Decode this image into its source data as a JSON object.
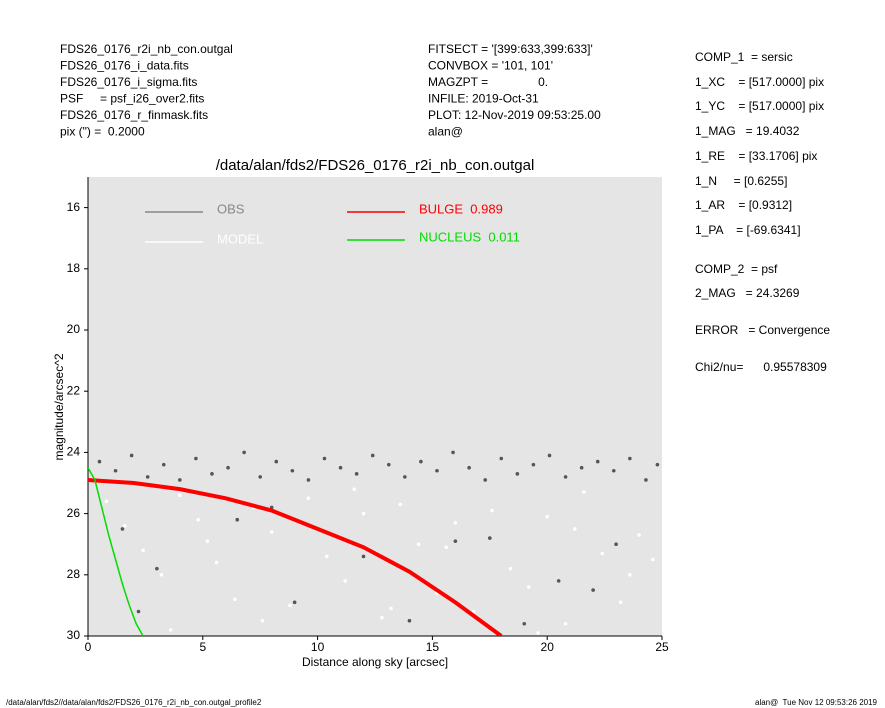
{
  "header": {
    "left": [
      "FDS26_0176_r2i_nb_con.outgal",
      "FDS26_0176_i_data.fits",
      "FDS26_0176_i_sigma.fits",
      "PSF     = psf_i26_over2.fits",
      "FDS26_0176_r_finmask.fits",
      "pix (\") =  0.2000"
    ],
    "middle": [
      "FITSECT = '[399:633,399:633]'",
      "CONVBOX = '101, 101'",
      "MAGZPT =               0.",
      "INFILE: 2019-Oct-31",
      "PLOT: 12-Nov-2019 09:53:25.00",
      "alan@"
    ]
  },
  "params": [
    "COMP_1  = sersic",
    "1_XC    = [517.0000] pix",
    "1_YC    = [517.0000] pix",
    "1_MAG   = 19.4032",
    "1_RE    = [33.1706] pix",
    "1_N     = [0.6255]",
    "1_AR    = [0.9312]",
    "1_PA    = [-69.6341]",
    "COMP_2  = psf",
    "2_MAG   = 24.3269",
    "ERROR   = Convergence",
    "Chi2/nu=      0.95578309"
  ],
  "footer": {
    "left": "/data/alan/fds2//data/alan/fds2/FDS26_0176_r2i_nb_con.outgal_profile2",
    "right": "alan@  Tue Nov 12 09:53:26 2019"
  },
  "chart_data": {
    "type": "scatter",
    "title": "/data/alan/fds2/FDS26_0176_r2i_nb_con.outgal",
    "xlabel": "Distance along sky [arcsec]",
    "ylabel": "magnitude/arcsec^2",
    "xlim": [
      0,
      25
    ],
    "xticks": [
      0,
      5,
      10,
      15,
      20,
      25
    ],
    "ylim": [
      30,
      15
    ],
    "yticks": [
      16,
      18,
      20,
      22,
      24,
      26,
      28,
      30
    ],
    "y_inverted": true,
    "background": "#e5e5e5",
    "series": [
      {
        "name": "OBS",
        "color": "#555555",
        "mode": "markers",
        "x": [
          0.5,
          1.2,
          1.9,
          2.6,
          3.3,
          4.0,
          4.7,
          5.4,
          6.1,
          6.8,
          7.5,
          8.2,
          8.9,
          9.6,
          10.3,
          11.0,
          11.7,
          12.4,
          13.1,
          13.8,
          14.5,
          15.2,
          15.9,
          16.6,
          17.3,
          18.0,
          18.7,
          19.4,
          20.1,
          20.8,
          21.5,
          22.2,
          22.9,
          23.6,
          24.3,
          24.8,
          1.5,
          3.0,
          6.5,
          9.0,
          12.0,
          14.0,
          17.5,
          20.5,
          23.0,
          2.2,
          8.0,
          16.0,
          19.0,
          22.0
        ],
        "values": [
          24.3,
          24.6,
          24.1,
          24.8,
          24.4,
          24.9,
          24.2,
          24.7,
          24.5,
          24.0,
          24.8,
          24.3,
          24.6,
          24.9,
          24.2,
          24.5,
          24.7,
          24.1,
          24.4,
          24.8,
          24.3,
          24.6,
          24.0,
          24.5,
          24.9,
          24.2,
          24.7,
          24.4,
          24.1,
          24.8,
          24.5,
          24.3,
          24.6,
          24.2,
          24.9,
          24.4,
          26.5,
          27.8,
          26.2,
          28.9,
          27.4,
          29.5,
          26.8,
          28.2,
          27.0,
          29.2,
          25.8,
          26.9,
          29.6,
          28.5
        ]
      },
      {
        "name": "MODEL",
        "color": "#ffffff",
        "mode": "markers",
        "x": [
          0.8,
          1.6,
          2.4,
          3.2,
          4.0,
          4.8,
          5.6,
          6.4,
          7.2,
          8.0,
          8.8,
          9.6,
          10.4,
          11.2,
          12.0,
          12.8,
          13.6,
          14.4,
          15.2,
          16.0,
          16.8,
          17.6,
          18.4,
          19.2,
          20.0,
          20.8,
          21.6,
          22.4,
          23.2,
          24.0,
          3.6,
          7.6,
          11.6,
          15.6,
          19.6,
          23.6,
          5.2,
          13.2,
          21.2,
          24.6
        ],
        "values": [
          25.6,
          26.4,
          27.2,
          28.0,
          25.4,
          26.2,
          27.6,
          28.8,
          25.8,
          26.6,
          29.0,
          25.5,
          27.4,
          28.2,
          26.0,
          29.4,
          25.7,
          27.0,
          28.6,
          26.3,
          29.2,
          25.9,
          27.8,
          28.4,
          26.1,
          29.6,
          25.3,
          27.3,
          28.9,
          26.7,
          29.8,
          29.5,
          25.2,
          27.1,
          29.9,
          28.0,
          26.9,
          29.1,
          26.5,
          27.5
        ]
      },
      {
        "name": "BULGE  0.989",
        "color": "#ff0000",
        "mode": "line",
        "x": [
          0,
          2,
          4,
          6,
          8,
          10,
          12,
          14,
          16,
          18
        ],
        "values": [
          24.9,
          25.0,
          25.2,
          25.5,
          25.9,
          26.5,
          27.1,
          27.9,
          28.9,
          30.0
        ]
      },
      {
        "name": "NUCLEUS  0.011",
        "color": "#00dd00",
        "mode": "line",
        "x": [
          0,
          0.3,
          0.6,
          0.9,
          1.2,
          1.5,
          1.8,
          2.1,
          2.4
        ],
        "values": [
          24.5,
          24.9,
          25.8,
          26.7,
          27.5,
          28.3,
          29.0,
          29.6,
          30.0
        ]
      }
    ]
  }
}
